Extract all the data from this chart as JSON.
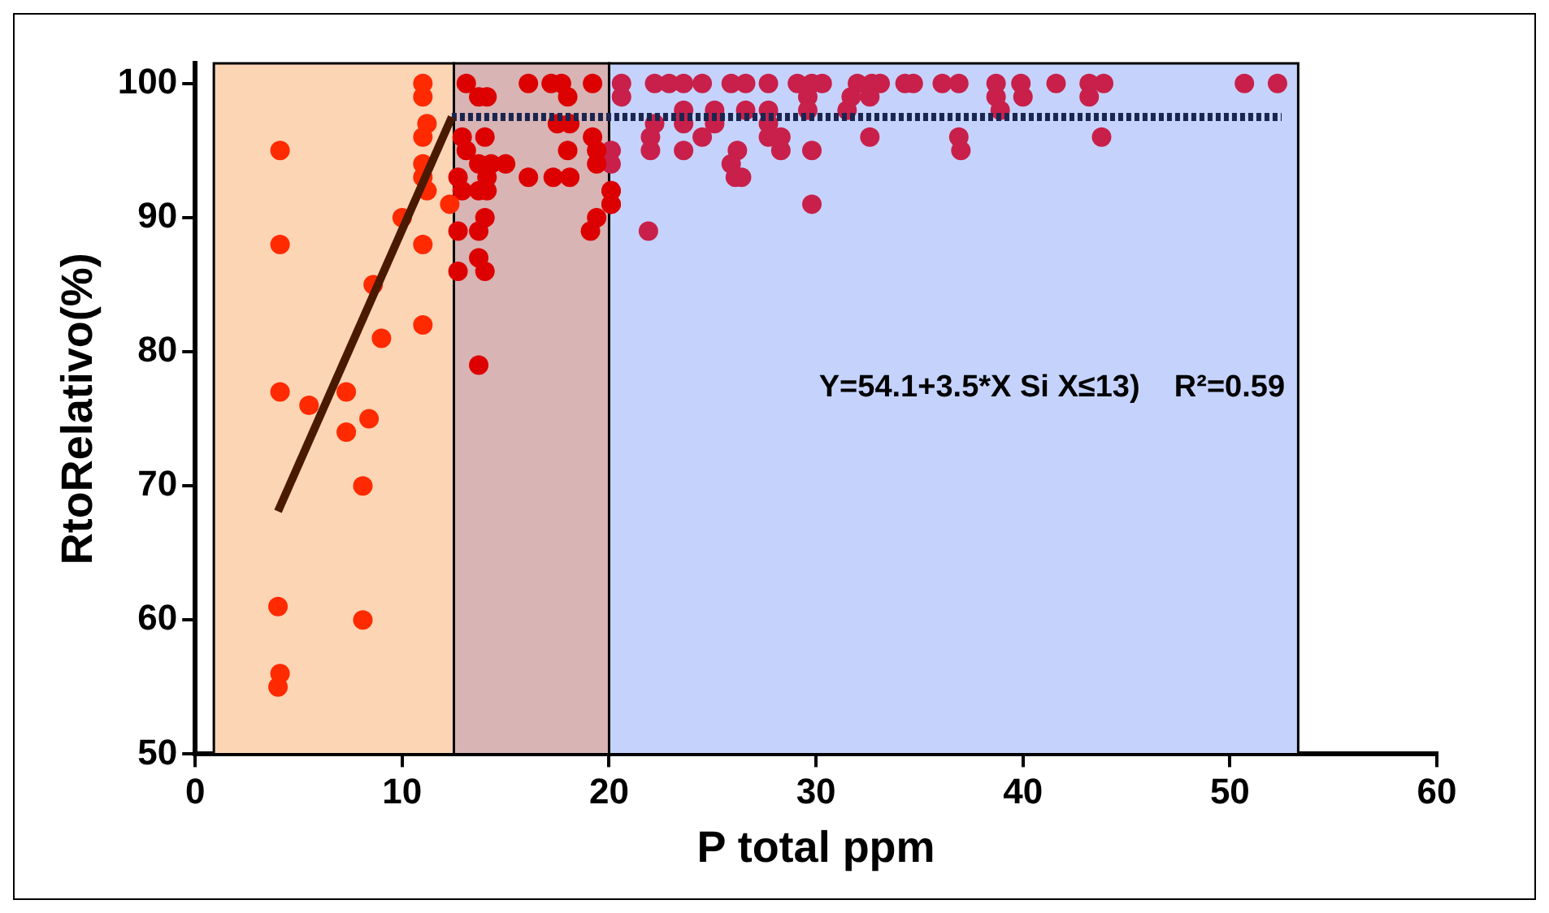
{
  "chart_data": {
    "type": "scatter",
    "xlabel": "P total ppm",
    "ylabel": "RtoRelativo(%)",
    "xlim": [
      0,
      60
    ],
    "xticks": [
      0,
      10,
      20,
      30,
      40,
      50,
      60
    ],
    "ylim": [
      50,
      101.5
    ],
    "yticks": [
      50,
      60,
      70,
      80,
      90,
      100
    ],
    "grid": false,
    "legend": false,
    "marker": "circle",
    "annotations": [
      "Y=54.1+3.5*X Si X≤13)    R²=0.59"
    ],
    "bands": [
      {
        "axis": "x",
        "from": 0.9,
        "to": 12.5,
        "color": "#fcd5b5"
      },
      {
        "axis": "x",
        "from": 12.5,
        "to": 20,
        "color": "#d8b4b4"
      },
      {
        "axis": "x",
        "from": 20,
        "to": 53.3,
        "color": "#c5d3fc"
      }
    ],
    "series": [
      {
        "type": "scatter",
        "color": "#ff2a00",
        "x": [
          4.1,
          4.1,
          4.1,
          4.0,
          4.1,
          4.0,
          5.5,
          7.3,
          7.3,
          8.4,
          8.1,
          8.1,
          9.0,
          8.6,
          10.0,
          11.0,
          11.0,
          11.0,
          11.0,
          11.2,
          11.0,
          11.0,
          11.0,
          11.2,
          12.3
        ],
        "values": [
          95,
          88,
          77,
          61,
          56,
          55,
          76,
          77,
          74,
          75,
          70,
          60,
          81,
          85,
          90,
          82,
          88,
          100,
          99,
          97,
          96,
          94,
          93,
          92,
          91
        ]
      },
      {
        "type": "scatter",
        "color": "#dd0000",
        "x": [
          13.1,
          13.7,
          14.1,
          14.0,
          12.9,
          13.1,
          13.7,
          14.3,
          15.0,
          12.7,
          14.1,
          12.9,
          13.7,
          14.1,
          14.0,
          12.7,
          13.7,
          13.7,
          12.7,
          14.0,
          13.7,
          16.1,
          17.2,
          17.7,
          18.0,
          19.2,
          17.5,
          18.1,
          19.2,
          18.0,
          19.4,
          19.4,
          16.1,
          17.3,
          18.1,
          20.1,
          20.1,
          19.4,
          19.1
        ],
        "values": [
          100,
          99,
          99,
          96,
          96,
          95,
          94,
          94,
          94,
          93,
          93,
          92,
          92,
          92,
          90,
          89,
          89,
          87,
          86,
          86,
          79,
          100,
          100,
          100,
          99,
          100,
          97,
          97,
          96,
          95,
          95,
          94,
          93,
          93,
          93,
          92,
          91,
          90,
          89
        ]
      },
      {
        "type": "scatter",
        "color": "#c8204a",
        "x": [
          20.6,
          20.6,
          20.1,
          20.1,
          20.1,
          20.1,
          21.9,
          22.2,
          22.9,
          23.6,
          24.5,
          25.9,
          26.6,
          27.7,
          29.1,
          29.8,
          30.3,
          32.0,
          32.7,
          33.1,
          34.3,
          34.7,
          36.1,
          36.9,
          38.7,
          39.9,
          41.6,
          43.2,
          43.9,
          50.7,
          52.3,
          29.6,
          31.7,
          32.6,
          38.7,
          40.0,
          43.2,
          23.6,
          25.1,
          26.6,
          27.7,
          29.6,
          31.5,
          38.9,
          22.2,
          23.6,
          25.1,
          27.7,
          22.0,
          24.5,
          27.7,
          28.3,
          32.6,
          36.9,
          43.8,
          22.0,
          23.6,
          26.2,
          28.3,
          29.8,
          37.0,
          25.9,
          26.1,
          26.4,
          29.8
        ],
        "values": [
          100,
          99,
          95,
          94,
          92,
          91,
          89,
          100,
          100,
          100,
          100,
          100,
          100,
          100,
          100,
          100,
          100,
          100,
          100,
          100,
          100,
          100,
          100,
          100,
          100,
          100,
          100,
          100,
          100,
          100,
          100,
          99,
          99,
          99,
          99,
          99,
          99,
          98,
          98,
          98,
          98,
          98,
          98,
          98,
          97,
          97,
          97,
          97,
          96,
          96,
          96,
          96,
          96,
          96,
          96,
          95,
          95,
          95,
          95,
          95,
          95,
          94,
          93,
          93,
          91
        ]
      },
      {
        "type": "line",
        "color": "#4a1a00",
        "line_style": "solid",
        "marker": "none",
        "x": [
          4,
          12.4
        ],
        "values": [
          68.1,
          97.5
        ]
      },
      {
        "type": "line",
        "color": "#1a2550",
        "line_style": "dotted",
        "marker": "none",
        "x": [
          12.4,
          52.5
        ],
        "values": [
          97.5,
          97.5
        ]
      }
    ]
  }
}
